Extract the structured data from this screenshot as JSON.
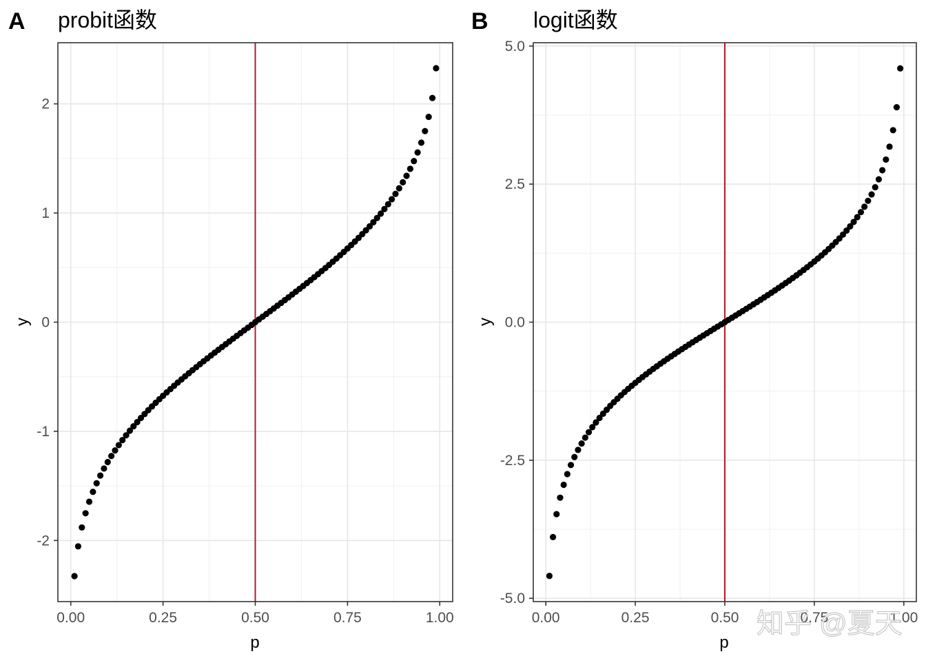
{
  "chart_data": [
    {
      "type": "scatter",
      "panel_tag": "A",
      "title": "probit函数",
      "xlabel": "p",
      "ylabel": "y",
      "xlim": [
        -0.035,
        1.035
      ],
      "ylim": [
        -2.56,
        2.56
      ],
      "x_ticks": [
        0,
        0.25,
        0.5,
        0.75,
        1
      ],
      "x_tick_labels": [
        "0.00",
        "0.25",
        "0.50",
        "0.75",
        "1.00"
      ],
      "y_ticks": [
        -2,
        -1,
        0,
        1,
        2
      ],
      "y_tick_labels": [
        "-2",
        "-1",
        "0",
        "1",
        "2"
      ],
      "function": "probit",
      "x": {
        "from": 0.01,
        "to": 0.99,
        "step": 0.01
      },
      "vline": {
        "x": 0.5,
        "color": "#b2182b"
      },
      "point_color": "#000000",
      "grid": true
    },
    {
      "type": "scatter",
      "panel_tag": "B",
      "title": "logit函数",
      "xlabel": "p",
      "ylabel": "y",
      "xlim": [
        -0.035,
        1.035
      ],
      "ylim": [
        -5.06,
        5.06
      ],
      "x_ticks": [
        0,
        0.25,
        0.5,
        0.75,
        1
      ],
      "x_tick_labels": [
        "0.00",
        "0.25",
        "0.50",
        "0.75",
        "1.00"
      ],
      "y_ticks": [
        -5,
        -2.5,
        0,
        2.5,
        5
      ],
      "y_tick_labels": [
        "-5.0",
        "-2.5",
        "0.0",
        "2.5",
        "5.0"
      ],
      "function": "logit",
      "x": {
        "from": 0.01,
        "to": 0.99,
        "step": 0.01
      },
      "vline": {
        "x": 0.5,
        "color": "#b2182b"
      },
      "point_color": "#000000",
      "grid": true
    }
  ],
  "watermark": "知乎 @夏天"
}
